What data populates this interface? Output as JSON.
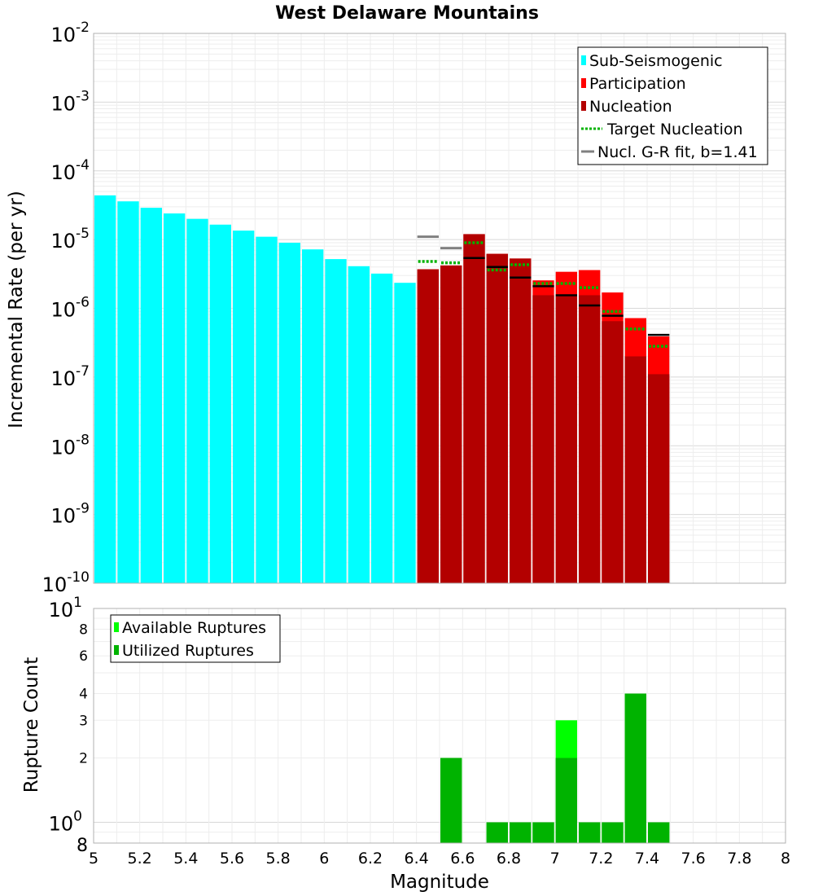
{
  "chart_data": [
    {
      "type": "bar",
      "title": "West Delaware Mountains",
      "xlabel": "",
      "ylabel": "Incremental Rate (per yr)",
      "yscale": "log",
      "xlim": [
        5,
        8
      ],
      "ylim": [
        1e-10,
        0.01
      ],
      "ytick_exponents": [
        "-10",
        "-9",
        "-8",
        "-7",
        "-6",
        "-5",
        "-4",
        "-3",
        "-2"
      ],
      "bin_width": 0.1,
      "legend": {
        "position": "top-right",
        "entries": [
          {
            "label": "Sub-Seismogenic",
            "color": "#00ffff",
            "kind": "box"
          },
          {
            "label": "Participation",
            "color": "#ff0000",
            "kind": "box"
          },
          {
            "label": "Nucleation",
            "color": "#b30000",
            "kind": "box"
          },
          {
            "label": "Target Nucleation",
            "color": "#00b300",
            "kind": "dotted"
          },
          {
            "label": "Nucl. G-R fit, b=1.41",
            "color": "#808080",
            "kind": "line"
          }
        ]
      },
      "series": [
        {
          "name": "Sub-Seismogenic",
          "color": "#00ffff",
          "x": [
            5.05,
            5.15,
            5.25,
            5.35,
            5.45,
            5.55,
            5.65,
            5.75,
            5.85,
            5.95,
            6.05,
            6.15,
            6.25,
            6.35
          ],
          "values": [
            4.4e-05,
            3.6e-05,
            2.9e-05,
            2.4e-05,
            2e-05,
            1.65e-05,
            1.35e-05,
            1.1e-05,
            9e-06,
            7.2e-06,
            5.2e-06,
            4.1e-06,
            3.2e-06,
            2.35e-06
          ]
        },
        {
          "name": "Participation",
          "color": "#ff0000",
          "x": [
            6.45,
            6.55,
            6.65,
            6.75,
            6.85,
            6.95,
            7.05,
            7.15,
            7.25,
            7.35,
            7.45
          ],
          "values": [
            3.7e-06,
            4.2e-06,
            1.2e-05,
            6.2e-06,
            5.3e-06,
            2.55e-06,
            3.4e-06,
            3.6e-06,
            1.7e-06,
            7.2e-07,
            3.9e-07
          ]
        },
        {
          "name": "Nucleation",
          "color": "#b30000",
          "x": [
            6.45,
            6.55,
            6.65,
            6.75,
            6.85,
            6.95,
            7.05,
            7.15,
            7.25,
            7.35,
            7.45
          ],
          "values": [
            3.7e-06,
            4.2e-06,
            1.2e-05,
            6.2e-06,
            5.3e-06,
            1.55e-06,
            1.5e-06,
            1.55e-06,
            6.5e-07,
            2e-07,
            1.1e-07
          ]
        },
        {
          "name": "Target Nucleation",
          "color": "#00b300",
          "x": [
            6.45,
            6.55,
            6.65,
            6.75,
            6.85,
            6.95,
            7.05,
            7.15,
            7.25,
            7.35,
            7.45
          ],
          "values": [
            4.8e-06,
            4.6e-06,
            9e-06,
            3.6e-06,
            4.3e-06,
            2.3e-06,
            2.3e-06,
            2e-06,
            9e-07,
            5e-07,
            2.8e-07
          ]
        },
        {
          "name": "Nucl. G-R fit, b=1.41",
          "color": "#808080",
          "x": [
            6.45,
            6.55
          ],
          "values": [
            1.1e-05,
            7.5e-06
          ]
        },
        {
          "name": "Nucleation (black marks)",
          "color": "#000000",
          "x": [
            6.65,
            6.75,
            6.85,
            6.95,
            7.05,
            7.15,
            7.25,
            7.45
          ],
          "values": [
            5.4e-06,
            4e-06,
            2.8e-06,
            2.1e-06,
            1.55e-06,
            1.1e-06,
            7.8e-07,
            4.1e-07
          ]
        }
      ]
    },
    {
      "type": "bar",
      "title": "",
      "xlabel": "Magnitude",
      "ylabel": "Rupture Count",
      "yscale": "log",
      "xlim": [
        5,
        8
      ],
      "ylim": [
        0.8,
        10
      ],
      "xticks": [
        "5",
        "5.2",
        "5.4",
        "5.6",
        "5.8",
        "6",
        "6.2",
        "6.4",
        "6.6",
        "6.8",
        "7",
        "7.2",
        "7.4",
        "7.6",
        "7.8",
        "8"
      ],
      "yticks_minor": [
        {
          "value": 2,
          "label": "2"
        },
        {
          "value": 3,
          "label": "3"
        },
        {
          "value": 4,
          "label": "4"
        },
        {
          "value": 6,
          "label": "6"
        },
        {
          "value": 8,
          "label": "8"
        }
      ],
      "ytick_bottom_label": "8",
      "ytick_major": [
        {
          "value": 1,
          "base": "10",
          "exp": "0"
        },
        {
          "value": 10,
          "base": "10",
          "exp": "1"
        }
      ],
      "legend": {
        "position": "top-left",
        "entries": [
          {
            "label": "Available Ruptures",
            "color": "#00ff00",
            "kind": "box"
          },
          {
            "label": "Utilized Ruptures",
            "color": "#00b300",
            "kind": "box"
          }
        ]
      },
      "series": [
        {
          "name": "Available Ruptures",
          "color": "#00ff00",
          "x": [
            6.55,
            6.75,
            6.85,
            6.95,
            7.05,
            7.15,
            7.25,
            7.35,
            7.45
          ],
          "values": [
            2,
            1,
            1,
            1,
            3,
            1,
            1,
            4,
            1
          ]
        },
        {
          "name": "Utilized Ruptures",
          "color": "#00b300",
          "x": [
            6.55,
            6.75,
            6.85,
            6.95,
            7.05,
            7.15,
            7.25,
            7.35,
            7.45
          ],
          "values": [
            2,
            1,
            1,
            1,
            2,
            1,
            1,
            4,
            1
          ]
        }
      ]
    }
  ]
}
